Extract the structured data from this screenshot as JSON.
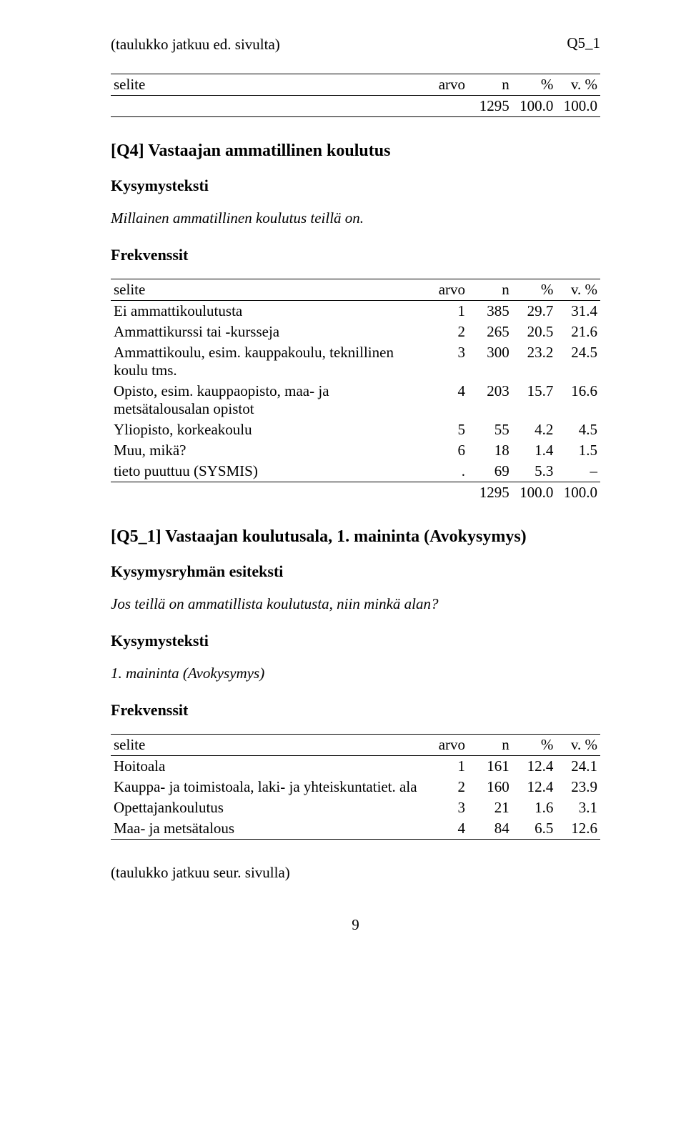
{
  "page_label_top_right": "Q5_1",
  "continued_note": "(taulukko jatkuu ed. sivulta)",
  "table1": {
    "columns": [
      "selite",
      "arvo",
      "n",
      "%",
      "v. %"
    ],
    "rows": [
      {
        "selite": "",
        "arvo": "",
        "n": "1295",
        "pct": "100.0",
        "vpct": "100.0"
      }
    ]
  },
  "q4": {
    "title": "[Q4] Vastaajan ammatillinen koulutus",
    "kysymysteksti_label": "Kysymysteksti",
    "kysymysteksti_body": "Millainen ammatillinen koulutus teillä on.",
    "frekvenssit_label": "Frekvenssit"
  },
  "table2": {
    "columns": [
      "selite",
      "arvo",
      "n",
      "%",
      "v. %"
    ],
    "rows": [
      {
        "selite": "Ei ammattikoulutusta",
        "arvo": "1",
        "n": "385",
        "pct": "29.7",
        "vpct": "31.4"
      },
      {
        "selite": "Ammattikurssi tai -kursseja",
        "arvo": "2",
        "n": "265",
        "pct": "20.5",
        "vpct": "21.6"
      },
      {
        "selite": "Ammattikoulu, esim. kauppakoulu, teknillinen koulu tms.",
        "arvo": "3",
        "n": "300",
        "pct": "23.2",
        "vpct": "24.5"
      },
      {
        "selite": "Opisto, esim. kauppaopisto, maa- ja metsätalousalan opistot",
        "arvo": "4",
        "n": "203",
        "pct": "15.7",
        "vpct": "16.6"
      },
      {
        "selite": "Yliopisto, korkeakoulu",
        "arvo": "5",
        "n": "55",
        "pct": "4.2",
        "vpct": "4.5"
      },
      {
        "selite": "Muu, mikä?",
        "arvo": "6",
        "n": "18",
        "pct": "1.4",
        "vpct": "1.5"
      },
      {
        "selite": "tieto puuttuu (SYSMIS)",
        "arvo": ".",
        "n": "69",
        "pct": "5.3",
        "vpct": "–"
      }
    ],
    "total": {
      "selite": "",
      "arvo": "",
      "n": "1295",
      "pct": "100.0",
      "vpct": "100.0"
    }
  },
  "q5_1": {
    "title": "[Q5_1] Vastaajan koulutusala, 1. maininta (Avokysymys)",
    "esiteksti_label": "Kysymysryhmän esiteksti",
    "esiteksti_body": "Jos teillä on ammatillista koulutusta, niin minkä alan?",
    "kysymysteksti_label": "Kysymysteksti",
    "kysymysteksti_body": "1. maininta (Avokysymys)",
    "frekvenssit_label": "Frekvenssit"
  },
  "table3": {
    "columns": [
      "selite",
      "arvo",
      "n",
      "%",
      "v. %"
    ],
    "rows": [
      {
        "selite": "Hoitoala",
        "arvo": "1",
        "n": "161",
        "pct": "12.4",
        "vpct": "24.1"
      },
      {
        "selite": "Kauppa- ja toimistoala, laki- ja yhteiskuntatiet. ala",
        "arvo": "2",
        "n": "160",
        "pct": "12.4",
        "vpct": "23.9"
      },
      {
        "selite": "Opettajankoulutus",
        "arvo": "3",
        "n": "21",
        "pct": "1.6",
        "vpct": "3.1"
      },
      {
        "selite": "Maa- ja metsätalous",
        "arvo": "4",
        "n": "84",
        "pct": "6.5",
        "vpct": "12.6"
      }
    ]
  },
  "continued_next": "(taulukko jatkuu seur. sivulla)",
  "page_number": "9"
}
